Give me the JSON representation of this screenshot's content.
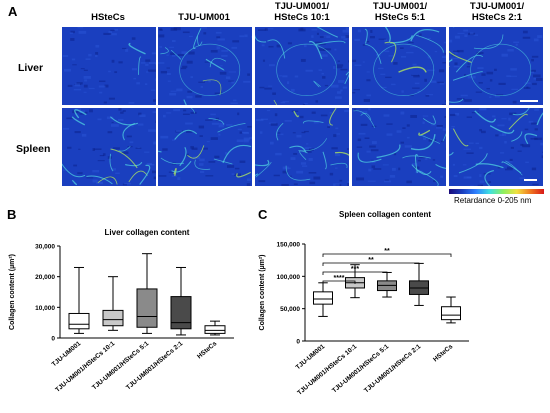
{
  "panel_labels": {
    "a": "A",
    "b": "B",
    "c": "C"
  },
  "microscopy": {
    "columns": [
      "HSteCs",
      "TJU-UM001",
      "TJU-UM001/\nHSteCs 10:1",
      "TJU-UM001/\nHSteCs 5:1",
      "TJU-UM001/\nHSteCs 2:1"
    ],
    "rows": [
      "Liver",
      "Spleen"
    ],
    "colorbar_label": "Retardance 0-205 nm",
    "colors": {
      "background": "#1a3fbf",
      "fiber": "#4fd0e0",
      "fiber_hot": "#b8f05a",
      "dark": "#0a1f8a"
    }
  },
  "chart_data": [
    {
      "type": "boxplot",
      "title": "Liver collagen content",
      "ylabel": "Collagen content (µm²)",
      "ylim": [
        0,
        30000
      ],
      "yticks": [
        "0",
        "10,000",
        "20,000",
        "30,000"
      ],
      "ytick_values": [
        0,
        10000,
        20000,
        30000
      ],
      "categories": [
        "TJU-UM001",
        "TJU-UM001/HSteCs 10:1",
        "TJU-UM001/HSteCs 5:1",
        "TJU-UM001/HSteCs 2:1",
        "HSteCs"
      ],
      "boxes": [
        {
          "min": 1500,
          "q1": 3000,
          "median": 4500,
          "q3": 8000,
          "max": 23000,
          "fill": "#ffffff"
        },
        {
          "min": 2500,
          "q1": 4000,
          "median": 6000,
          "q3": 9000,
          "max": 20000,
          "fill": "#c8c8c8"
        },
        {
          "min": 1500,
          "q1": 3500,
          "median": 7000,
          "q3": 16000,
          "max": 27500,
          "fill": "#8a8a8a"
        },
        {
          "min": 1000,
          "q1": 3000,
          "median": 5000,
          "q3": 13500,
          "max": 23000,
          "fill": "#4a4a4a"
        },
        {
          "min": 1000,
          "q1": 1500,
          "median": 2500,
          "q3": 4000,
          "max": 5500,
          "fill": "#ffffff"
        }
      ]
    },
    {
      "type": "boxplot",
      "title": "Spleen collagen content",
      "ylabel": "Collagen content (µm²)",
      "ylim": [
        0,
        150000
      ],
      "yticks": [
        "0",
        "50,000",
        "100,000",
        "150,000"
      ],
      "ytick_values": [
        0,
        50000,
        100000,
        150000
      ],
      "categories": [
        "TJU-UM001",
        "TJU-UM001/HSteCs 10:1",
        "TJU-UM001/HSteCs 5:1",
        "TJU-UM001/HSteCs 2:1",
        "HSteCs"
      ],
      "boxes": [
        {
          "min": 38000,
          "q1": 57000,
          "median": 65000,
          "q3": 76000,
          "max": 90000,
          "fill": "#ffffff"
        },
        {
          "min": 67000,
          "q1": 82000,
          "median": 90000,
          "q3": 98000,
          "max": 118000,
          "fill": "#c8c8c8"
        },
        {
          "min": 68000,
          "q1": 78000,
          "median": 86000,
          "q3": 93000,
          "max": 106000,
          "fill": "#8a8a8a"
        },
        {
          "min": 55000,
          "q1": 72000,
          "median": 82000,
          "q3": 93000,
          "max": 120000,
          "fill": "#4a4a4a"
        },
        {
          "min": 28000,
          "q1": 33000,
          "median": 40000,
          "q3": 53000,
          "max": 68000,
          "fill": "#ffffff"
        }
      ],
      "significance": [
        {
          "from": 0,
          "to": 1,
          "label": "****"
        },
        {
          "from": 0,
          "to": 2,
          "label": "***"
        },
        {
          "from": 0,
          "to": 3,
          "label": "**"
        },
        {
          "from": 0,
          "to": 4,
          "label": "**"
        }
      ]
    }
  ]
}
